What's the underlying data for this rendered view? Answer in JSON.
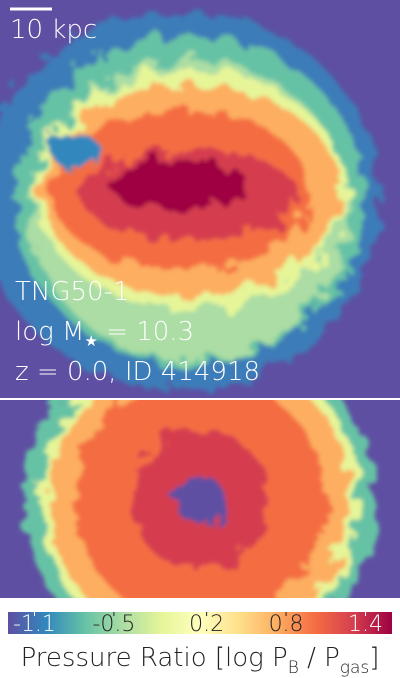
{
  "top_panel": {
    "scale_bar": "10 kpc",
    "simulation": "TNG50-1",
    "mass_label": [
      "log M",
      "★",
      " = 10.3"
    ],
    "redshift_label": "z = 0.0, ID 414918"
  },
  "colorbar": {
    "colormap": "Spectral_r",
    "clim": [
      -1.3,
      1.6
    ],
    "ticks": [
      -1.1,
      -0.5,
      0.2,
      0.8,
      1.4
    ],
    "label": [
      "Pressure Ratio [log P",
      "B",
      " / P",
      "gas",
      "]"
    ]
  }
}
